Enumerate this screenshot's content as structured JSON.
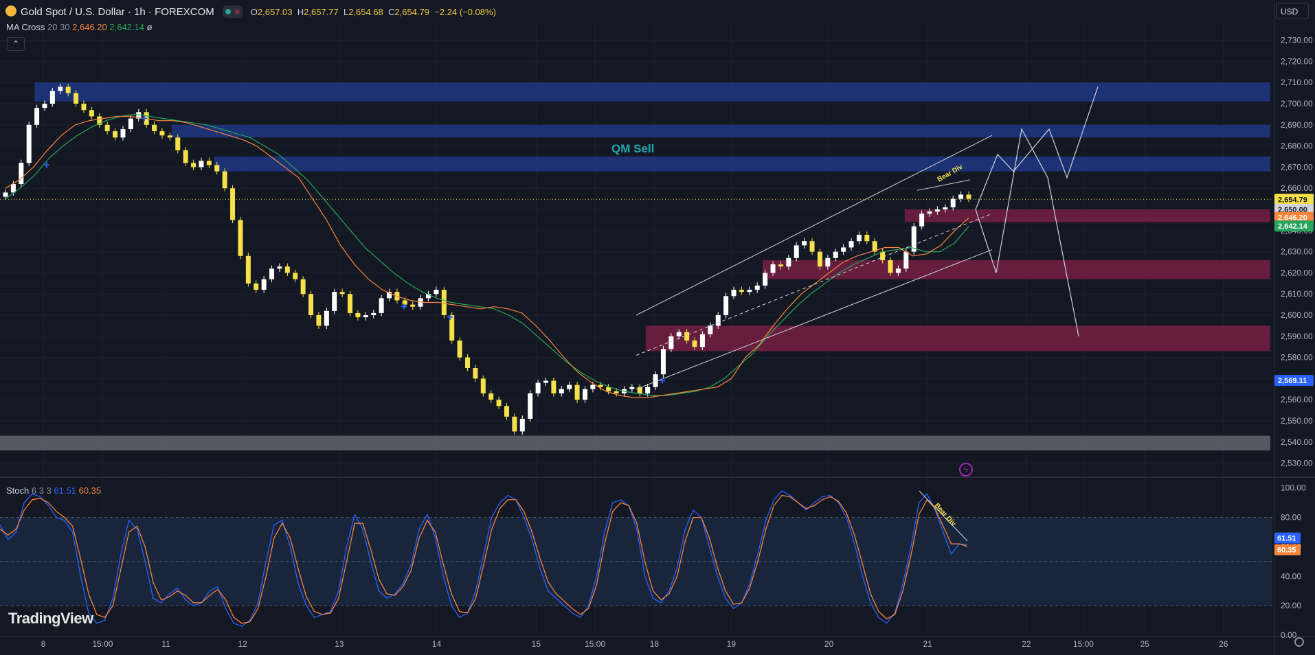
{
  "header": {
    "symbol": "Gold Spot / U.S. Dollar · 1h · FOREXCOM",
    "open_label": "O",
    "open": "2,657.03",
    "high_label": "H",
    "high": "2,657.77",
    "low_label": "L",
    "low": "2,654.68",
    "close_label": "C",
    "close": "2,654.79",
    "change": "−2.24 (−0.08%)"
  },
  "ma_cross": {
    "name": "MA Cross",
    "params": "20 30",
    "v1": "2,646.20",
    "v2": "2,642.14",
    "eye": "ø"
  },
  "currency": "USD",
  "stoch": {
    "name": "Stoch",
    "params": "6 3 3",
    "k": "61.51",
    "d": "60.35"
  },
  "logo": "TradingView",
  "colors": {
    "bg": "#141823",
    "grid": "#1e222d",
    "bull": "#ffffff",
    "bear": "#f7e14a",
    "ma_fast": "#f7853b",
    "ma_slow": "#26a65b",
    "blue_zone": "#1e3a8a",
    "red_zone": "#7a1f45",
    "stoch_k": "#2962ff",
    "stoch_d": "#f7853b"
  },
  "chart_data": {
    "type": "candlestick",
    "title": "Gold Spot / U.S. Dollar · 1h · FOREXCOM",
    "ylim": [
      2525,
      2738
    ],
    "y_ticks": [
      "2,730.00",
      "2,720.00",
      "2,710.00",
      "2,700.00",
      "2,690.00",
      "2,680.00",
      "2,670.00",
      "2,660.00",
      "2,650.00",
      "2,640.00",
      "2,630.00",
      "2,620.00",
      "2,610.00",
      "2,600.00",
      "2,590.00",
      "2,580.00",
      "2,570.00",
      "2,560.00",
      "2,550.00",
      "2,540.00",
      "2,530.00"
    ],
    "y_tick_values": [
      2730,
      2720,
      2710,
      2700,
      2690,
      2680,
      2670,
      2660,
      2650,
      2640,
      2630,
      2620,
      2610,
      2600,
      2590,
      2580,
      2570,
      2560,
      2550,
      2540,
      2530
    ],
    "x_labels": [
      "8",
      "15:00",
      "11",
      "12",
      "13",
      "14",
      "15",
      "15:00",
      "18",
      "19",
      "20",
      "21",
      "22",
      "15:00",
      "25",
      "26"
    ],
    "x_label_index": [
      0,
      0.5,
      1,
      2,
      3,
      4,
      5,
      5.5,
      6,
      7,
      8,
      9,
      10,
      10.5,
      11,
      12
    ],
    "day_x_pct": [
      0.0329,
      0.0781,
      0.1262,
      0.1845,
      0.258,
      0.332,
      0.4077,
      0.4525,
      0.4976,
      0.5561,
      0.6304,
      0.7054,
      0.7805,
      0.8239,
      0.8705,
      0.9304
    ],
    "price_labels": [
      {
        "text": "2,654.79",
        "value": 2654.79,
        "bg": "#f7e14a",
        "fg": "#141823"
      },
      {
        "text": "2,650.00",
        "value": 2650.0,
        "bg": "#d1d4dc",
        "fg": "#141823"
      },
      {
        "text": "2,646.20",
        "value": 2646.2,
        "bg": "#f7853b",
        "fg": "#ffffff"
      },
      {
        "text": "2,642.14",
        "value": 2642.14,
        "bg": "#26a65b",
        "fg": "#ffffff"
      },
      {
        "text": "2,569.11",
        "value": 2569.11,
        "bg": "#2962ff",
        "fg": "#ffffff"
      }
    ],
    "closes": [
      2658,
      2662,
      2672,
      2690,
      2698,
      2700,
      2706,
      2708,
      2705,
      2700,
      2697,
      2694,
      2690,
      2687,
      2684,
      2688,
      2693,
      2696,
      2690,
      2687,
      2685,
      2684,
      2678,
      2672,
      2670,
      2673,
      2671,
      2668,
      2660,
      2645,
      2628,
      2615,
      2612,
      2617,
      2622,
      2623,
      2620,
      2617,
      2610,
      2600,
      2595,
      2602,
      2611,
      2610,
      2601,
      2599,
      2600,
      2601,
      2608,
      2611,
      2607,
      2605,
      2604,
      2608,
      2610,
      2612,
      2600,
      2588,
      2580,
      2575,
      2570,
      2563,
      2560,
      2557,
      2552,
      2545,
      2551,
      2563,
      2568,
      2569,
      2563,
      2565,
      2567,
      2560,
      2565,
      2567,
      2566,
      2564,
      2563,
      2565,
      2566,
      2563,
      2566,
      2572,
      2584,
      2590,
      2592,
      2588,
      2585,
      2591,
      2595,
      2600,
      2609,
      2612,
      2611,
      2612,
      2614,
      2620,
      2624,
      2623,
      2627,
      2633,
      2635,
      2630,
      2623,
      2627,
      2630,
      2632,
      2635,
      2638,
      2635,
      2630,
      2626,
      2620,
      2622,
      2630,
      2642,
      2648,
      2649,
      2650,
      2651,
      2655,
      2657,
      2655
    ],
    "ma20": [
      2660,
      2664,
      2670,
      2678,
      2685,
      2690,
      2692,
      2693,
      2694,
      2694,
      2693,
      2692,
      2692,
      2691,
      2689,
      2687,
      2685,
      2683,
      2680,
      2675,
      2670,
      2665,
      2655,
      2645,
      2633,
      2624,
      2617,
      2612,
      2609,
      2607,
      2606,
      2606,
      2605,
      2604,
      2603,
      2604,
      2603,
      2601,
      2595,
      2588,
      2580,
      2573,
      2568,
      2564,
      2562,
      2561,
      2561,
      2562,
      2563,
      2564,
      2565,
      2566,
      2570,
      2580,
      2586,
      2595,
      2603,
      2610,
      2615,
      2620,
      2625,
      2628,
      2630,
      2632,
      2632,
      2628,
      2629,
      2633,
      2640,
      2646
    ],
    "ma30": [
      2655,
      2660,
      2666,
      2674,
      2680,
      2685,
      2689,
      2692,
      2694,
      2695,
      2694,
      2693,
      2692,
      2691,
      2690,
      2688,
      2686,
      2684,
      2680,
      2676,
      2670,
      2664,
      2656,
      2648,
      2640,
      2632,
      2626,
      2620,
      2615,
      2611,
      2608,
      2606,
      2605,
      2604,
      2603,
      2600,
      2596,
      2590,
      2584,
      2578,
      2573,
      2569,
      2566,
      2564,
      2563,
      2562,
      2562,
      2563,
      2564,
      2566,
      2570,
      2576,
      2582,
      2590,
      2597,
      2604,
      2610,
      2615,
      2620,
      2624,
      2627,
      2630,
      2631,
      2632,
      2630,
      2630,
      2634,
      2642
    ],
    "zones": [
      {
        "kind": "blue",
        "y1": 2701,
        "y2": 2710,
        "x1": 0.0263,
        "x2": 0.966
      },
      {
        "kind": "blue",
        "y1": 2684,
        "y2": 2690,
        "x1": 0.1305,
        "x2": 0.966
      },
      {
        "kind": "blue",
        "y1": 2668,
        "y2": 2675,
        "x1": 0.163,
        "x2": 0.966
      },
      {
        "kind": "gray",
        "y1": 2536,
        "y2": 2543,
        "x1": 0.0,
        "x2": 0.966
      },
      {
        "kind": "red",
        "y1": 2644,
        "y2": 2650,
        "x1": 0.688,
        "x2": 0.966
      },
      {
        "kind": "red",
        "y1": 2617,
        "y2": 2626,
        "x1": 0.58,
        "x2": 0.966
      },
      {
        "kind": "red",
        "y1": 2583,
        "y2": 2595,
        "x1": 0.491,
        "x2": 0.966
      }
    ],
    "annotations": [
      {
        "text": "QM Sell",
        "value": 2677,
        "x": 0.465,
        "color": "#22a6b3",
        "size": 17
      },
      {
        "text": "Bear Div",
        "value": 2663,
        "x": 0.714,
        "color": "#f7e14a",
        "size": 10,
        "rotate": -30
      }
    ],
    "stoch": {
      "ylim": [
        0,
        105
      ],
      "ticks": [
        "100.00",
        "80.00",
        "60.00",
        "40.00",
        "20.00",
        "0.00"
      ],
      "tick_values": [
        100,
        80,
        60,
        40,
        20,
        0
      ],
      "levels": [
        80,
        50,
        20
      ],
      "k": [
        75,
        65,
        70,
        90,
        96,
        94,
        88,
        80,
        78,
        70,
        40,
        15,
        8,
        10,
        25,
        55,
        78,
        72,
        50,
        25,
        22,
        28,
        32,
        24,
        20,
        22,
        30,
        33,
        18,
        8,
        6,
        10,
        22,
        50,
        75,
        78,
        60,
        35,
        20,
        12,
        14,
        16,
        30,
        60,
        82,
        72,
        50,
        30,
        25,
        28,
        35,
        48,
        72,
        82,
        66,
        40,
        20,
        12,
        15,
        30,
        55,
        80,
        90,
        95,
        92,
        80,
        65,
        45,
        30,
        25,
        20,
        15,
        12,
        20,
        40,
        70,
        90,
        92,
        88,
        72,
        40,
        25,
        22,
        30,
        46,
        72,
        85,
        80,
        60,
        40,
        25,
        18,
        22,
        35,
        55,
        78,
        92,
        98,
        95,
        90,
        85,
        90,
        94,
        95,
        90,
        80,
        62,
        40,
        22,
        12,
        8,
        15,
        35,
        60,
        90,
        96,
        85,
        70,
        55,
        62,
        61.51
      ],
      "d": [
        72,
        68,
        72,
        85,
        92,
        93,
        90,
        84,
        80,
        74,
        52,
        28,
        14,
        12,
        20,
        45,
        70,
        74,
        60,
        36,
        24,
        26,
        30,
        27,
        22,
        22,
        27,
        31,
        24,
        12,
        8,
        9,
        18,
        40,
        66,
        76,
        66,
        45,
        26,
        16,
        14,
        15,
        25,
        50,
        76,
        76,
        58,
        38,
        28,
        27,
        33,
        44,
        66,
        78,
        70,
        48,
        28,
        16,
        15,
        25,
        48,
        72,
        86,
        92,
        92,
        84,
        70,
        52,
        36,
        28,
        23,
        18,
        14,
        18,
        34,
        62,
        84,
        90,
        88,
        76,
        50,
        30,
        24,
        28,
        40,
        64,
        80,
        80,
        66,
        46,
        30,
        21,
        22,
        32,
        50,
        72,
        88,
        95,
        94,
        90,
        86,
        88,
        92,
        94,
        91,
        83,
        68,
        48,
        28,
        16,
        11,
        14,
        30,
        54,
        82,
        92,
        86,
        74,
        62,
        62,
        60.35
      ]
    }
  }
}
